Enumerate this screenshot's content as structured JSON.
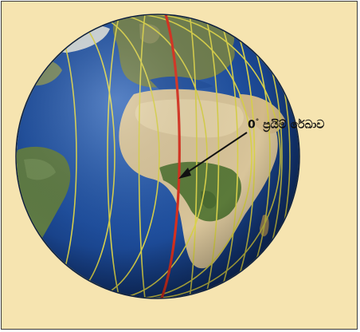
{
  "diagram": {
    "label_degree": "0",
    "label_degree_symbol": "°",
    "label_text": "ප්‍රයිම් රේඛාව"
  },
  "colors": {
    "frame_background": "#f6e4b0",
    "frame_border": "#3a3a3a",
    "ocean": "#1f4f9e",
    "land_desert": "#d9c59a",
    "land_green": "#5b7a3a",
    "meridians": "#d9d24a",
    "prime_meridian": "#d8301e",
    "arrow": "#111111"
  }
}
